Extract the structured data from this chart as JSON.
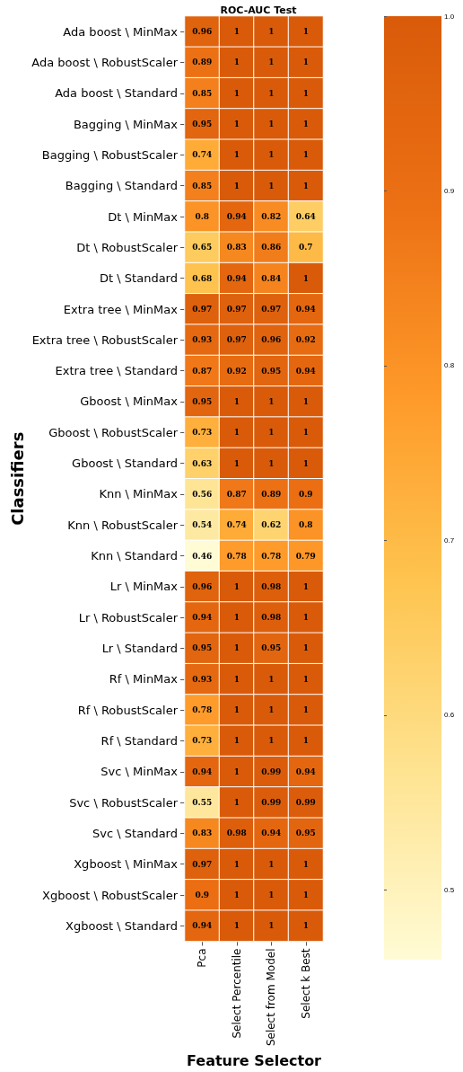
{
  "chart_data": {
    "type": "heatmap",
    "title": "ROC-AUC Test",
    "xlabel": "Feature Selector",
    "ylabel": "Classifiers",
    "categories": [
      "Pca",
      "Select Percentile",
      "Select from Model",
      "Select k Best"
    ],
    "y_categories": [
      "Ada boost \\ MinMax",
      "Ada boost \\ RobustScaler",
      "Ada boost \\ Standard",
      "Bagging \\ MinMax",
      "Bagging \\ RobustScaler",
      "Bagging \\ Standard",
      "Dt \\ MinMax",
      "Dt \\ RobustScaler",
      "Dt \\ Standard",
      "Extra tree \\ MinMax",
      "Extra tree \\ RobustScaler",
      "Extra tree \\ Standard",
      "Gboost \\ MinMax",
      "Gboost \\ RobustScaler",
      "Gboost \\ Standard",
      "Knn \\ MinMax",
      "Knn \\ RobustScaler",
      "Knn \\ Standard",
      "Lr \\ MinMax",
      "Lr \\ RobustScaler",
      "Lr \\ Standard",
      "Rf \\ MinMax",
      "Rf \\ RobustScaler",
      "Rf \\ Standard",
      "Svc \\ MinMax",
      "Svc \\ RobustScaler",
      "Svc \\ Standard",
      "Xgboost \\ MinMax",
      "Xgboost \\ RobustScaler",
      "Xgboost \\ Standard"
    ],
    "cells": [
      [
        0.96,
        1,
        1,
        1
      ],
      [
        0.89,
        1,
        1,
        1
      ],
      [
        0.85,
        1,
        1,
        1
      ],
      [
        0.95,
        1,
        1,
        1
      ],
      [
        0.74,
        1,
        1,
        1
      ],
      [
        0.85,
        1,
        1,
        1
      ],
      [
        0.8,
        0.94,
        0.82,
        0.64
      ],
      [
        0.65,
        0.83,
        0.86,
        0.7
      ],
      [
        0.68,
        0.94,
        0.84,
        1
      ],
      [
        0.97,
        0.97,
        0.97,
        0.94
      ],
      [
        0.93,
        0.97,
        0.96,
        0.92
      ],
      [
        0.87,
        0.92,
        0.95,
        0.94
      ],
      [
        0.95,
        1,
        1,
        1
      ],
      [
        0.73,
        1,
        1,
        1
      ],
      [
        0.63,
        1,
        1,
        1
      ],
      [
        0.56,
        0.87,
        0.89,
        0.9
      ],
      [
        0.54,
        0.74,
        0.62,
        0.8
      ],
      [
        0.46,
        0.78,
        0.78,
        0.79
      ],
      [
        0.96,
        1,
        0.98,
        1
      ],
      [
        0.94,
        1,
        0.98,
        1
      ],
      [
        0.95,
        1,
        0.95,
        1
      ],
      [
        0.93,
        1,
        1,
        1
      ],
      [
        0.78,
        1,
        1,
        1
      ],
      [
        0.73,
        1,
        1,
        1
      ],
      [
        0.94,
        1,
        0.99,
        0.94
      ],
      [
        0.55,
        1,
        0.99,
        0.99
      ],
      [
        0.83,
        0.98,
        0.94,
        0.95
      ],
      [
        0.97,
        1,
        1,
        1
      ],
      [
        0.9,
        1,
        1,
        1
      ],
      [
        0.94,
        1,
        1,
        1
      ]
    ],
    "clim": [
      0.46,
      1.0
    ],
    "cticks": [
      0.5,
      0.6,
      0.7,
      0.8,
      0.9,
      {
        "value": 1,
        "label": "1.0"
      }
    ],
    "data_labels": true
  }
}
